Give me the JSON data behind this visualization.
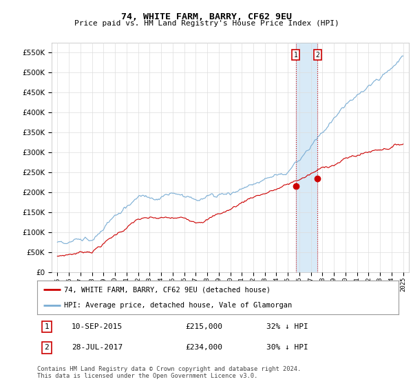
{
  "title": "74, WHITE FARM, BARRY, CF62 9EU",
  "subtitle": "Price paid vs. HM Land Registry's House Price Index (HPI)",
  "hpi_label": "HPI: Average price, detached house, Vale of Glamorgan",
  "price_label": "74, WHITE FARM, BARRY, CF62 9EU (detached house)",
  "hpi_color": "#7aadd4",
  "price_color": "#cc0000",
  "vline_color": "#cc0000",
  "shade_color": "#d8eaf7",
  "annotation1": {
    "label": "1",
    "date": "10-SEP-2015",
    "price": "£215,000",
    "note": "32% ↓ HPI"
  },
  "annotation2": {
    "label": "2",
    "date": "28-JUL-2017",
    "price": "£234,000",
    "note": "30% ↓ HPI"
  },
  "t1_x": 2015.69,
  "t2_x": 2017.58,
  "p1_y": 215000,
  "p2_y": 234000,
  "ylim": [
    0,
    575000
  ],
  "yticks": [
    0,
    50000,
    100000,
    150000,
    200000,
    250000,
    300000,
    350000,
    400000,
    450000,
    500000,
    550000
  ],
  "xlim_left": 1994.5,
  "xlim_right": 2025.5,
  "footer": "Contains HM Land Registry data © Crown copyright and database right 2024.\nThis data is licensed under the Open Government Licence v3.0.",
  "background_color": "#ffffff",
  "grid_color": "#dddddd"
}
